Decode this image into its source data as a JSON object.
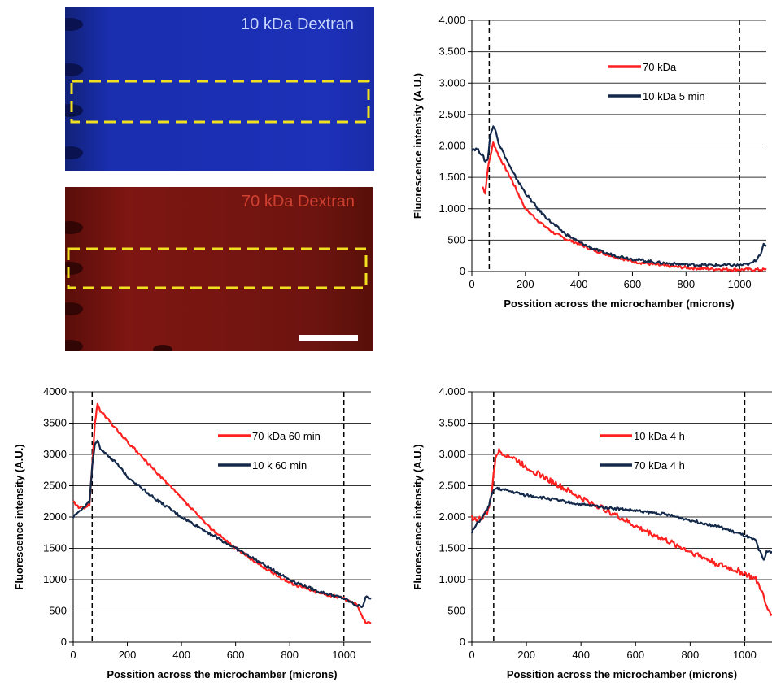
{
  "images": [
    {
      "label": "10 kDa Dextran",
      "colors": {
        "base": "#1a2ca8",
        "dark": "#0d1870",
        "label": "#c9d6ff",
        "roi": "#f0e020"
      }
    },
    {
      "label": "70 kDa Dextran",
      "colors": {
        "base": "#7a1410",
        "dark": "#4a0a08",
        "label": "#d04030",
        "roi": "#f0e020"
      },
      "scale_bar": true
    }
  ],
  "chart_data": [
    {
      "type": "line",
      "xlabel": "Possition across the microchamber (microns)",
      "ylabel": "Fluorescence intensity (A.U.)",
      "xlim": [
        0,
        1100
      ],
      "ylim": [
        0,
        4000
      ],
      "xticks": [
        0,
        200,
        400,
        600,
        800,
        1000
      ],
      "yticks": [
        0,
        500,
        1000,
        1500,
        2000,
        2500,
        3000,
        3500,
        4000
      ],
      "ytick_labels": [
        "0",
        "500",
        "1.000",
        "1.500",
        "2.000",
        "2.500",
        "3.000",
        "3.500",
        "4.000"
      ],
      "vlines": [
        65,
        1000
      ],
      "legend": "top-right",
      "series": [
        {
          "name": "70 kDa",
          "color": "#ff2020",
          "x": [
            40,
            50,
            60,
            70,
            80,
            100,
            150,
            200,
            250,
            300,
            350,
            400,
            450,
            500,
            600,
            700,
            800,
            900,
            1000,
            1100
          ],
          "y": [
            1350,
            1250,
            1650,
            1850,
            2050,
            1850,
            1450,
            1000,
            800,
            630,
            520,
            440,
            350,
            280,
            160,
            100,
            60,
            40,
            30,
            30
          ]
        },
        {
          "name": "10 kDa 5 min",
          "color": "#14294a",
          "x": [
            0,
            20,
            40,
            50,
            60,
            70,
            80,
            90,
            100,
            150,
            200,
            250,
            300,
            350,
            400,
            450,
            500,
            600,
            700,
            800,
            900,
            1000,
            1040,
            1060,
            1080,
            1090,
            1100
          ],
          "y": [
            1950,
            1950,
            1850,
            1750,
            1800,
            2200,
            2300,
            2250,
            2050,
            1600,
            1250,
            980,
            770,
            600,
            470,
            370,
            290,
            200,
            140,
            110,
            100,
            100,
            120,
            180,
            300,
            420,
            400
          ]
        }
      ]
    },
    {
      "type": "line",
      "xlabel": "Possition across the microchamber (microns)",
      "ylabel": "Fluorescence intensity (A.U.)",
      "xlim": [
        0,
        1100
      ],
      "ylim": [
        0,
        4000
      ],
      "xticks": [
        0,
        200,
        400,
        600,
        800,
        1000
      ],
      "yticks": [
        0,
        500,
        1000,
        1500,
        2000,
        2500,
        3000,
        3500,
        4000
      ],
      "ytick_labels": [
        "0",
        "500",
        "1000",
        "1500",
        "2000",
        "2500",
        "3000",
        "3500",
        "4000"
      ],
      "vlines": [
        70,
        1000
      ],
      "legend": "top-right",
      "series": [
        {
          "name": "70 kDa 60 min",
          "color": "#ff2020",
          "x": [
            0,
            20,
            40,
            60,
            70,
            80,
            90,
            100,
            150,
            200,
            300,
            400,
            500,
            600,
            700,
            800,
            900,
            1000,
            1050,
            1070,
            1080,
            1100
          ],
          "y": [
            2250,
            2150,
            2150,
            2200,
            2800,
            3500,
            3800,
            3700,
            3450,
            3200,
            2750,
            2300,
            1850,
            1500,
            1200,
            950,
            800,
            700,
            600,
            400,
            320,
            300
          ]
        },
        {
          "name": "10 k 60 min",
          "color": "#14294a",
          "x": [
            0,
            20,
            40,
            60,
            70,
            80,
            90,
            100,
            150,
            200,
            300,
            400,
            500,
            600,
            700,
            800,
            900,
            1000,
            1050,
            1070,
            1080,
            1100
          ],
          "y": [
            2000,
            2100,
            2150,
            2250,
            2800,
            3150,
            3200,
            3100,
            2900,
            2650,
            2300,
            2000,
            1750,
            1500,
            1250,
            1000,
            820,
            700,
            580,
            580,
            720,
            690
          ]
        }
      ]
    },
    {
      "type": "line",
      "xlabel": "Possition across the microchamber (microns)",
      "ylabel": "Fluorescence intensity (A.U.)",
      "xlim": [
        0,
        1100
      ],
      "ylim": [
        0,
        4000
      ],
      "xticks": [
        0,
        200,
        400,
        600,
        800,
        1000
      ],
      "yticks": [
        0,
        500,
        1000,
        1500,
        2000,
        2500,
        3000,
        3500,
        4000
      ],
      "ytick_labels": [
        "0",
        "500",
        "1.000",
        "1.500",
        "2.000",
        "2.500",
        "3.000",
        "3.500",
        "4.000"
      ],
      "vlines": [
        80,
        1000
      ],
      "legend": "top-right",
      "series": [
        {
          "name": "10 kDa 4 h",
          "color": "#ff2020",
          "x": [
            0,
            20,
            40,
            60,
            70,
            80,
            90,
            100,
            150,
            200,
            300,
            400,
            500,
            600,
            700,
            800,
            900,
            1000,
            1040,
            1060,
            1080,
            1100
          ],
          "y": [
            2000,
            1950,
            2000,
            2100,
            2300,
            2700,
            3000,
            3050,
            2950,
            2800,
            2550,
            2300,
            2100,
            1850,
            1650,
            1450,
            1250,
            1100,
            1000,
            850,
            550,
            450
          ]
        },
        {
          "name": "70 kDa 4 h",
          "color": "#14294a",
          "x": [
            0,
            20,
            40,
            60,
            70,
            80,
            90,
            100,
            150,
            200,
            300,
            400,
            500,
            600,
            700,
            800,
            900,
            1000,
            1040,
            1060,
            1070,
            1080,
            1100
          ],
          "y": [
            1750,
            1900,
            2000,
            2150,
            2300,
            2450,
            2450,
            2450,
            2400,
            2350,
            2280,
            2200,
            2150,
            2100,
            2050,
            1950,
            1850,
            1700,
            1620,
            1400,
            1300,
            1450,
            1450
          ]
        }
      ]
    }
  ]
}
